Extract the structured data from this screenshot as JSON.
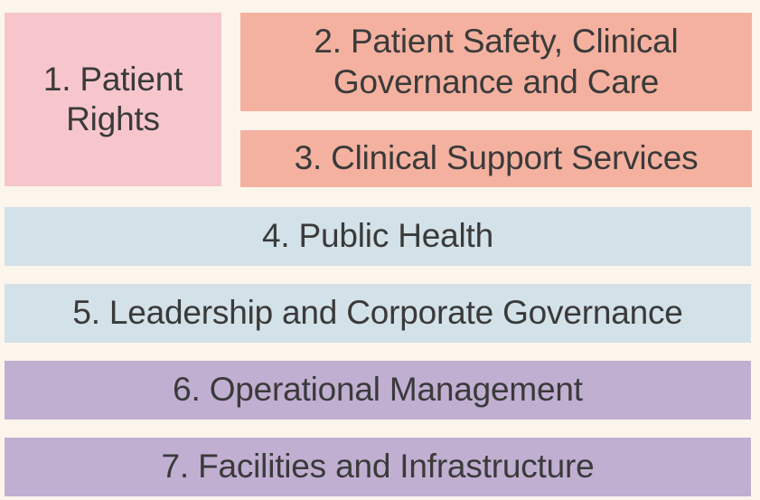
{
  "background_color": "#fcf5ec",
  "text_color": "#3a3a3a",
  "boxes": [
    {
      "label_lines": [
        "1. Patient",
        "Rights"
      ],
      "color": "#f7c6cc"
    },
    {
      "label_lines": [
        "2. Patient Safety, Clinical",
        "Governance and Care"
      ],
      "color": "#f4b1a0"
    },
    {
      "label": "3. Clinical Support Services",
      "color": "#f4b1a0"
    },
    {
      "label": "4. Public Health",
      "color": "#d3e1e8"
    },
    {
      "label": "5. Leadership and Corporate Governance",
      "color": "#d3e1e8"
    },
    {
      "label": "6. Operational Management",
      "color": "#c1afd2"
    },
    {
      "label": "7. Facilities and Infrastructure",
      "color": "#c1afd2"
    }
  ]
}
